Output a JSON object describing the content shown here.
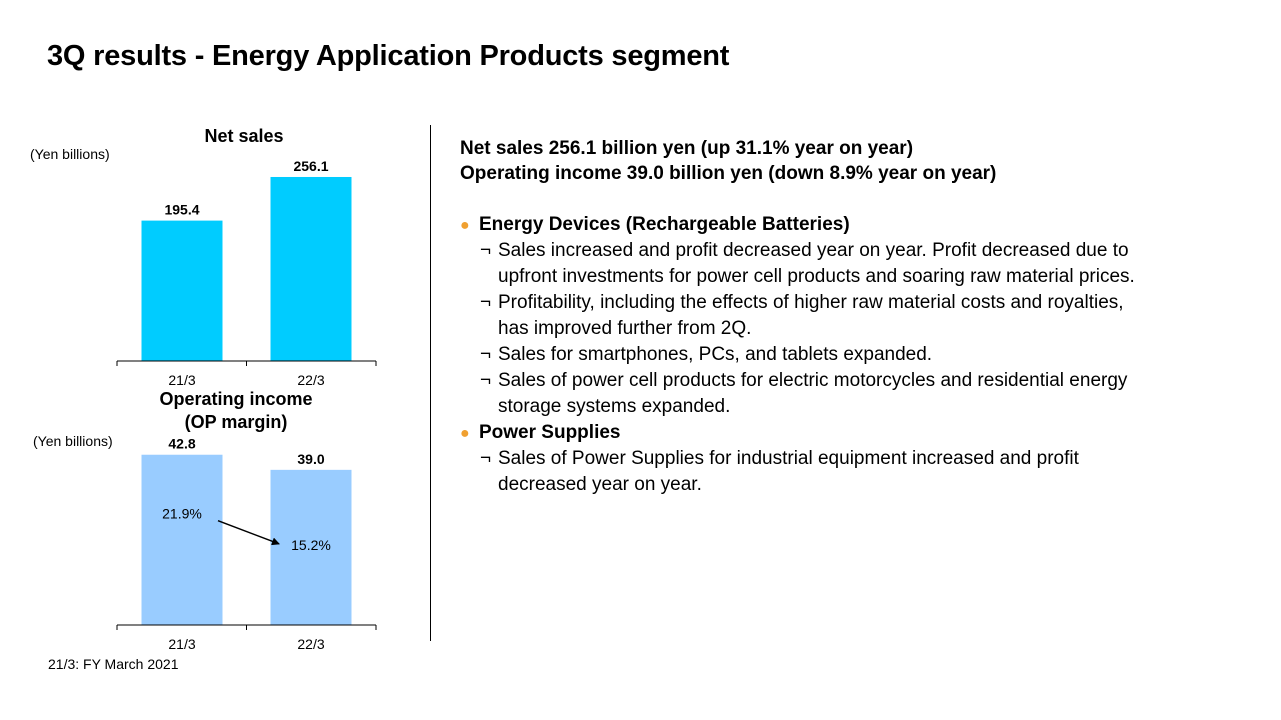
{
  "page": {
    "title": "3Q results - Energy Application Products segment",
    "footnote": "21/3: FY March 2021"
  },
  "colors": {
    "net_sales_bar": "#00ccff",
    "operating_income_bar": "#99ccff",
    "section_dot": "#f0a030"
  },
  "chart_data": [
    {
      "type": "bar",
      "title": "Net sales",
      "unit_label": "(Yen billions)",
      "categories": [
        "21/3",
        "22/3"
      ],
      "values": [
        195.4,
        256.1
      ],
      "value_labels": [
        "195.4",
        "256.1"
      ],
      "ylim": [
        0,
        270
      ],
      "grid": false,
      "legend": "none"
    },
    {
      "type": "bar",
      "title_lines": [
        "Operating income",
        "(OP margin)"
      ],
      "unit_label": "(Yen billions)",
      "categories": [
        "21/3",
        "22/3"
      ],
      "values": [
        42.8,
        39.0
      ],
      "value_labels": [
        "42.8",
        "39.0"
      ],
      "margins": [
        "21.9%",
        "15.2%"
      ],
      "ylim": [
        0,
        46
      ],
      "grid": false,
      "legend": "none"
    }
  ],
  "summary": {
    "line1": "Net sales  256.1 billion yen (up 31.1% year on year)",
    "line2": "Operating income  39.0 billion yen (down 8.9% year on year)"
  },
  "sections": [
    {
      "dot": "●",
      "heading": "Energy Devices (Rechargeable Batteries)",
      "bullets": [
        {
          "mark": "¬",
          "lines": [
            "Sales increased and profit decreased year on year. Profit decreased due to",
            "upfront investments for power cell products and soaring raw material prices."
          ]
        },
        {
          "mark": "¬",
          "lines": [
            "Profitability, including the effects of higher raw material costs and royalties,",
            "has improved further from 2Q."
          ]
        },
        {
          "mark": "¬",
          "lines": [
            "Sales for smartphones, PCs, and tablets expanded."
          ]
        },
        {
          "mark": "¬",
          "lines": [
            "Sales of power cell products for electric motorcycles and residential energy",
            "storage systems expanded."
          ]
        }
      ]
    },
    {
      "dot": "●",
      "heading": "Power Supplies",
      "bullets": [
        {
          "mark": "¬",
          "lines": [
            "Sales of Power Supplies for industrial equipment increased and profit",
            "decreased year on year."
          ]
        }
      ]
    }
  ]
}
